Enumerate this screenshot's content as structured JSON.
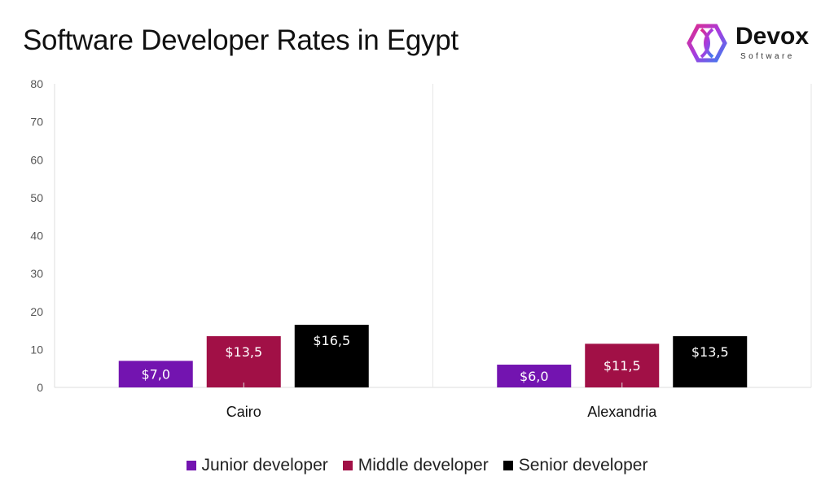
{
  "chart_data": {
    "type": "bar",
    "title": "Software Developer Rates in Egypt",
    "categories": [
      "Cairo",
      "Alexandria"
    ],
    "series": [
      {
        "name": "Junior developer",
        "values": [
          7.0,
          6.0
        ],
        "labels": [
          "$7,0",
          "$6,0"
        ],
        "color": "#7314b0"
      },
      {
        "name": "Middle developer",
        "values": [
          13.5,
          11.5
        ],
        "labels": [
          "$13,5",
          "$11,5"
        ],
        "color": "#a11046"
      },
      {
        "name": "Senior developer",
        "values": [
          16.5,
          13.5
        ],
        "labels": [
          "$16,5",
          "$13,5"
        ],
        "color": "#000000"
      }
    ],
    "ylim": [
      0,
      80
    ],
    "yticks": [
      "0",
      "10",
      "20",
      "30",
      "40",
      "50",
      "60",
      "70",
      "80"
    ],
    "grid": false,
    "legend": "bottom"
  },
  "logo": {
    "name": "Devox",
    "sub": "Software"
  }
}
